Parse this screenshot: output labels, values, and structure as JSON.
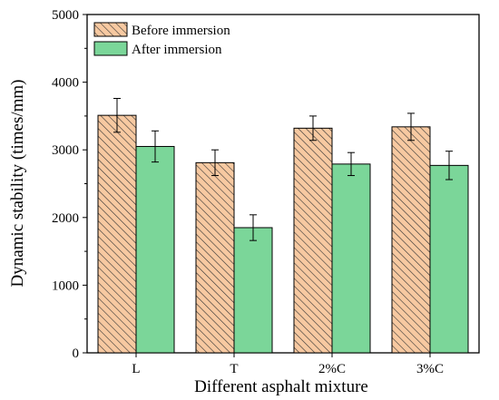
{
  "chart_data": {
    "type": "bar",
    "title": "",
    "xlabel": "Different asphalt mixture",
    "ylabel": "Dynamic stability (times/mm)",
    "categories": [
      "L",
      "T",
      "2%C",
      "3%C"
    ],
    "ylim": [
      0,
      5000
    ],
    "yticks": [
      "0",
      "1000",
      "2000",
      "3000",
      "4000",
      "5000"
    ],
    "grid": false,
    "legend_position": "top-left",
    "series": [
      {
        "name": "Before immersion",
        "values": [
          3510,
          2810,
          3320,
          3340
        ],
        "errors": [
          250,
          190,
          180,
          200
        ],
        "fill": "#f7c9a1",
        "hatch": "diagonal",
        "hatch_color": "#333333"
      },
      {
        "name": "After immersion",
        "values": [
          3050,
          1850,
          2790,
          2770
        ],
        "errors": [
          230,
          190,
          170,
          210
        ],
        "fill": "#7bd699"
      }
    ]
  }
}
